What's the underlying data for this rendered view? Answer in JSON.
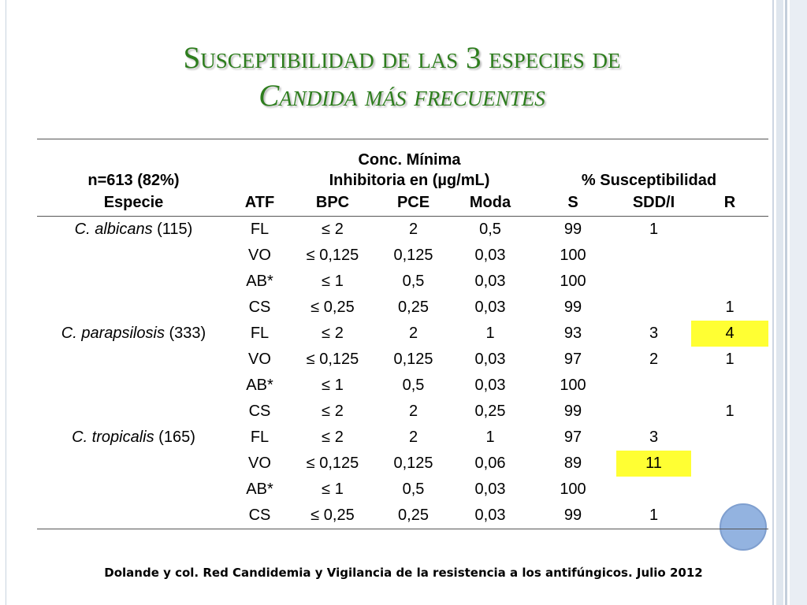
{
  "title": {
    "line1": "Susceptibilidad de las 3 especies de",
    "line2": "Candida más frecuentes"
  },
  "table": {
    "header": {
      "n_label": "n=613 (82%)",
      "especie": "Especie",
      "atf": "ATF",
      "cmi_line1": "Conc. Mínima",
      "cmi_line2": "Inhibitoria en (µg/mL)",
      "bpc": "BPC",
      "pce": "PCE",
      "moda": "Moda",
      "susc": "% Susceptibilidad",
      "s": "S",
      "sdd": "SDD/I",
      "r": "R"
    },
    "rows": [
      {
        "species": "C. albicans",
        "count": " (115)",
        "atf": "FL",
        "bpc": "≤ 2",
        "pce": "2",
        "moda": "0,5",
        "s": "99",
        "sdd": "1",
        "r": ""
      },
      {
        "species": "",
        "count": "",
        "atf": "VO",
        "bpc": "≤ 0,125",
        "pce": "0,125",
        "moda": "0,03",
        "s": "100",
        "sdd": "",
        "r": ""
      },
      {
        "species": "",
        "count": "",
        "atf": "AB*",
        "bpc": "≤ 1",
        "pce": "0,5",
        "moda": "0,03",
        "s": "100",
        "sdd": "",
        "r": ""
      },
      {
        "species": "",
        "count": "",
        "atf": "CS",
        "bpc": "≤ 0,25",
        "pce": "0,25",
        "moda": "0,03",
        "s": "99",
        "sdd": "",
        "r": "1"
      },
      {
        "species": "C. parapsilosis",
        "count": " (333)",
        "atf": "FL",
        "bpc": "≤ 2",
        "pce": "2",
        "moda": "1",
        "s": "93",
        "sdd": "3",
        "r": "4"
      },
      {
        "species": "",
        "count": "",
        "atf": "VO",
        "bpc": "≤ 0,125",
        "pce": "0,125",
        "moda": "0,03",
        "s": "97",
        "sdd": "2",
        "r": "1"
      },
      {
        "species": "",
        "count": "",
        "atf": "AB*",
        "bpc": "≤ 1",
        "pce": "0,5",
        "moda": "0,03",
        "s": "100",
        "sdd": "",
        "r": ""
      },
      {
        "species": "",
        "count": "",
        "atf": "CS",
        "bpc": "≤ 2",
        "pce": "2",
        "moda": "0,25",
        "s": "99",
        "sdd": "",
        "r": "1"
      },
      {
        "species": "C. tropicalis",
        "count": " (165)",
        "atf": "FL",
        "bpc": "≤ 2",
        "pce": "2",
        "moda": "1",
        "s": "97",
        "sdd": "3",
        "r": ""
      },
      {
        "species": "",
        "count": "",
        "atf": "VO",
        "bpc": "≤ 0,125",
        "pce": "0,125",
        "moda": "0,06",
        "s": "89",
        "sdd": "11",
        "r": ""
      },
      {
        "species": "",
        "count": "",
        "atf": "AB*",
        "bpc": "≤ 1",
        "pce": "0,5",
        "moda": "0,03",
        "s": "100",
        "sdd": "",
        "r": ""
      },
      {
        "species": "",
        "count": "",
        "atf": "CS",
        "bpc": "≤ 0,25",
        "pce": "0,25",
        "moda": "0,03",
        "s": "99",
        "sdd": "1",
        "r": ""
      }
    ]
  },
  "highlight_color": "#ffff33",
  "title_color": "#2d7d1d",
  "footnote": "Dolande  y col. Red Candidemia  y Vigilancia de la resistencia a los antifúngicos. Julio 2012"
}
